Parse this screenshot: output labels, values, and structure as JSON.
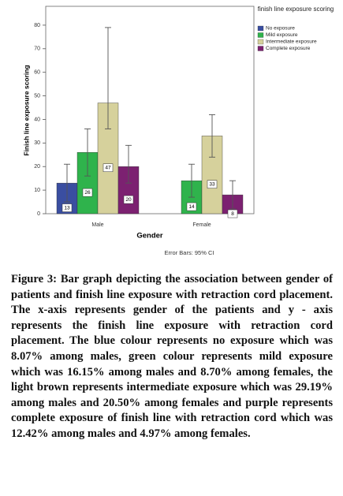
{
  "chart_data": {
    "type": "bar",
    "x_label": "Gender",
    "y_label": "Finish line exposure scoring",
    "legend_title": "finish line exposure scoring",
    "note": "Error Bars: 95% CI",
    "categories": [
      "Male",
      "Female"
    ],
    "series": [
      {
        "name": "No exposure",
        "color": "#3a4ea1",
        "values": [
          13,
          null
        ],
        "ci_lower": [
          5,
          null
        ],
        "ci_upper": [
          21,
          null
        ]
      },
      {
        "name": "Mild exposure",
        "color": "#2fb34c",
        "values": [
          26,
          14
        ],
        "ci_lower": [
          16,
          7
        ],
        "ci_upper": [
          36,
          21
        ]
      },
      {
        "name": "Intermediate exposure",
        "color": "#d6d19c",
        "values": [
          47,
          33
        ],
        "ci_lower": [
          36,
          24
        ],
        "ci_upper": [
          79,
          42
        ]
      },
      {
        "name": "Complete exposure",
        "color": "#7c2171",
        "values": [
          20,
          8
        ],
        "ci_lower": [
          13,
          2
        ],
        "ci_upper": [
          29,
          14
        ]
      }
    ],
    "ylim": [
      0,
      88
    ],
    "yticks": [
      0,
      10,
      20,
      30,
      40,
      50,
      60,
      70,
      80
    ]
  },
  "caption": "Figure 3: Bar graph depicting the association between gender of patients and finish line exposure with retraction cord placement. The x-axis represents gender of the patients and y - axis represents the finish line exposure with retraction cord placement. The blue colour represents no exposure which was 8.07% among males, green colour represents mild exposure which was 16.15% among males and 8.70% among females, the light brown represents intermediate exposure which was 29.19% among males and 20.50% among females and purple represents complete exposure of finish line with retraction cord which was 12.42% among males and 4.97% among females."
}
